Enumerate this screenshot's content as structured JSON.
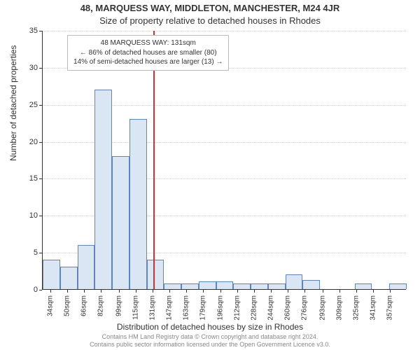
{
  "titles": {
    "line1": "48, MARQUESS WAY, MIDDLETON, MANCHESTER, M24 4JR",
    "line2": "Size of property relative to detached houses in Rhodes"
  },
  "axis": {
    "ylabel": "Number of detached properties",
    "xlabel": "Distribution of detached houses by size in Rhodes",
    "ylim": [
      0,
      35
    ],
    "ytick_step": 5,
    "label_fontsize": 12,
    "tick_fontsize": 11,
    "xtick_fontsize": 10
  },
  "marker": {
    "x_value": 131,
    "color": "#cc3333"
  },
  "annotation": {
    "lines": [
      "48 MARQUESS WAY: 131sqm",
      "← 86% of detached houses are smaller (80)",
      "14% of semi-detached houses are larger (13) →"
    ]
  },
  "chart": {
    "type": "histogram",
    "background_color": "#ffffff",
    "grid_color": "#cfcfcf",
    "bar_fill": "#dbe6f4",
    "bar_stroke": "#5a86c5",
    "bar_width_ratio": 1.0,
    "x_start": 26,
    "x_bin_width": 16.5,
    "x_ticks": [
      34,
      50,
      66,
      82,
      99,
      115,
      131,
      147,
      163,
      179,
      196,
      212,
      228,
      244,
      260,
      276,
      293,
      309,
      325,
      341,
      357
    ],
    "x_tick_suffix": "sqm",
    "values": [
      4,
      3,
      6,
      27,
      18,
      23,
      4,
      0.8,
      0.8,
      1,
      1,
      0.8,
      0.8,
      0.8,
      2,
      1.2,
      0,
      0,
      0.8,
      0,
      0.8
    ]
  },
  "footer": {
    "line1": "Contains HM Land Registry data © Crown copyright and database right 2024.",
    "line2": "Contains public sector information licensed under the Open Government Licence v3.0."
  },
  "colors": {
    "text": "#333333",
    "footer": "#888888"
  }
}
